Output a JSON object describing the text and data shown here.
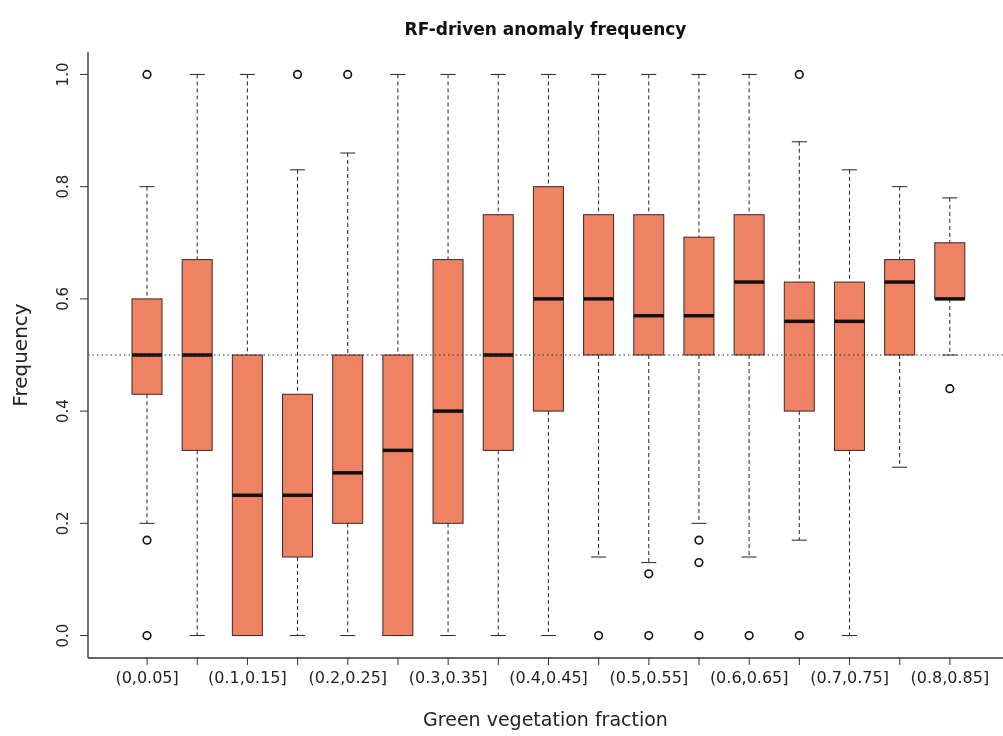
{
  "chart_data": {
    "type": "box",
    "title": "RF-driven anomaly frequency",
    "xlabel": "Green vegetation fraction",
    "ylabel": "Frequency",
    "categories": [
      "(0,0.05]",
      null,
      "(0.1,0.15]",
      null,
      "(0.2,0.25]",
      null,
      "(0.3,0.35]",
      null,
      "(0.4,0.45]",
      null,
      "(0.5,0.55]",
      null,
      "(0.6,0.65]",
      null,
      "(0.7,0.75]",
      null,
      "(0.8,0.85]"
    ],
    "color": "#ee8262",
    "boxes": [
      {
        "low": 0.2,
        "q1": 0.43,
        "median": 0.5,
        "q3": 0.6,
        "high": 0.8,
        "outliers": [
          1,
          0.17,
          0
        ]
      },
      {
        "low": 0,
        "q1": 0.33,
        "median": 0.5,
        "q3": 0.67,
        "high": 1
      },
      {
        "low": 0,
        "q1": 0,
        "median": 0.25,
        "q3": 0.5,
        "high": 1
      },
      {
        "low": 0,
        "q1": 0.14,
        "median": 0.25,
        "q3": 0.43,
        "high": 0.83,
        "outliers": [
          1
        ]
      },
      {
        "low": 0,
        "q1": 0.2,
        "median": 0.29,
        "q3": 0.5,
        "high": 0.86,
        "outliers": [
          1
        ]
      },
      {
        "low": 0,
        "q1": 0,
        "median": 0.33,
        "q3": 0.5,
        "high": 1
      },
      {
        "low": 0,
        "q1": 0.2,
        "median": 0.4,
        "q3": 0.67,
        "high": 1
      },
      {
        "low": 0,
        "q1": 0.33,
        "median": 0.5,
        "q3": 0.75,
        "high": 1
      },
      {
        "low": 0,
        "q1": 0.4,
        "median": 0.6,
        "q3": 0.8,
        "high": 1
      },
      {
        "low": 0.14,
        "q1": 0.5,
        "median": 0.6,
        "q3": 0.75,
        "high": 1,
        "outliers": [
          0
        ]
      },
      {
        "low": 0.13,
        "q1": 0.5,
        "median": 0.57,
        "q3": 0.75,
        "high": 1,
        "outliers": [
          0.11,
          0
        ]
      },
      {
        "low": 0.2,
        "q1": 0.5,
        "median": 0.57,
        "q3": 0.71,
        "high": 1,
        "outliers": [
          0.17,
          0.13,
          0
        ]
      },
      {
        "low": 0.14,
        "q1": 0.5,
        "median": 0.63,
        "q3": 0.75,
        "high": 1,
        "outliers": [
          0
        ]
      },
      {
        "low": 0.17,
        "q1": 0.4,
        "median": 0.56,
        "q3": 0.63,
        "high": 0.88,
        "outliers": [
          1,
          0
        ]
      },
      {
        "low": 0,
        "q1": 0.33,
        "median": 0.56,
        "q3": 0.63,
        "high": 0.83
      },
      {
        "low": 0.3,
        "q1": 0.5,
        "median": 0.63,
        "q3": 0.67,
        "high": 0.8
      },
      {
        "low": 0.5,
        "q1": 0.6,
        "median": 0.6,
        "q3": 0.7,
        "high": 0.78,
        "outliers": [
          0.44
        ]
      }
    ],
    "ylim": [
      -0.04,
      1.04
    ],
    "yticks": [
      {
        "value": 0,
        "label": "0.0"
      },
      0.2,
      0.4,
      0.6,
      0.8,
      {
        "value": 1,
        "label": "1.0"
      }
    ],
    "ref_lines": [
      {
        "axis": "y",
        "value": 0.5,
        "line_style": "dotted",
        "color": "#333333"
      }
    ]
  }
}
